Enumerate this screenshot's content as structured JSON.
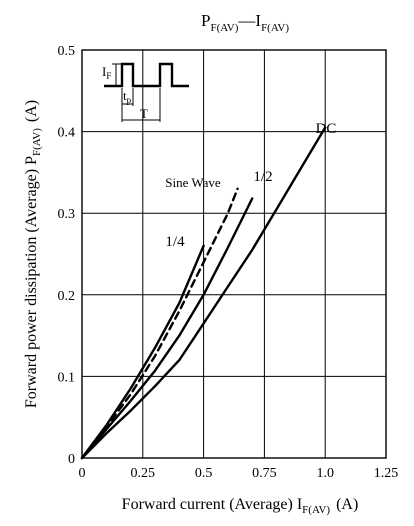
{
  "chart_data": {
    "type": "line",
    "title": {
      "main": "P",
      "main_sub": "F(AV)",
      "dash": "—",
      "second": "I",
      "second_sub": "F(AV)"
    },
    "xlabel": {
      "text": "Forward current (Average)  I",
      "sub": "F(AV)",
      "unit": "(A)"
    },
    "ylabel": {
      "text": "Forward power dissipation (Average)  P",
      "sub": "F(AV)",
      "unit": "(A)"
    },
    "xlim": [
      0,
      1.25
    ],
    "ylim": [
      0,
      0.5
    ],
    "x_ticks": [
      "0",
      "0.25",
      "0.5",
      "0.75",
      "1.0",
      "1.25"
    ],
    "y_ticks": [
      "0",
      "0.1",
      "0.2",
      "0.3",
      "0.4",
      "0.5"
    ],
    "grid": true,
    "series": [
      {
        "name": "DC",
        "style": "solid",
        "x": [
          0,
          0.1,
          0.2,
          0.3,
          0.4,
          0.5,
          0.6,
          0.7,
          0.8,
          0.9,
          1.0
        ],
        "y": [
          0,
          0.03,
          0.058,
          0.088,
          0.12,
          0.165,
          0.21,
          0.255,
          0.305,
          0.355,
          0.405
        ]
      },
      {
        "name": "1/2",
        "style": "solid",
        "x": [
          0,
          0.1,
          0.2,
          0.3,
          0.4,
          0.5,
          0.6,
          0.7
        ],
        "y": [
          0,
          0.035,
          0.07,
          0.107,
          0.15,
          0.2,
          0.258,
          0.318
        ]
      },
      {
        "name": "Sine Wave",
        "style": "dashed",
        "x": [
          0,
          0.1,
          0.2,
          0.3,
          0.4,
          0.5,
          0.6,
          0.64
        ],
        "y": [
          0,
          0.038,
          0.078,
          0.125,
          0.18,
          0.24,
          0.3,
          0.33
        ]
      },
      {
        "name": "1/4",
        "style": "solid",
        "x": [
          0,
          0.1,
          0.2,
          0.3,
          0.4,
          0.5
        ],
        "y": [
          0,
          0.04,
          0.085,
          0.135,
          0.19,
          0.26
        ]
      }
    ],
    "inset": {
      "if_label": "I",
      "if_sub": "F",
      "tp_label": "t",
      "tp_sub": "p",
      "t_label": "T"
    }
  }
}
